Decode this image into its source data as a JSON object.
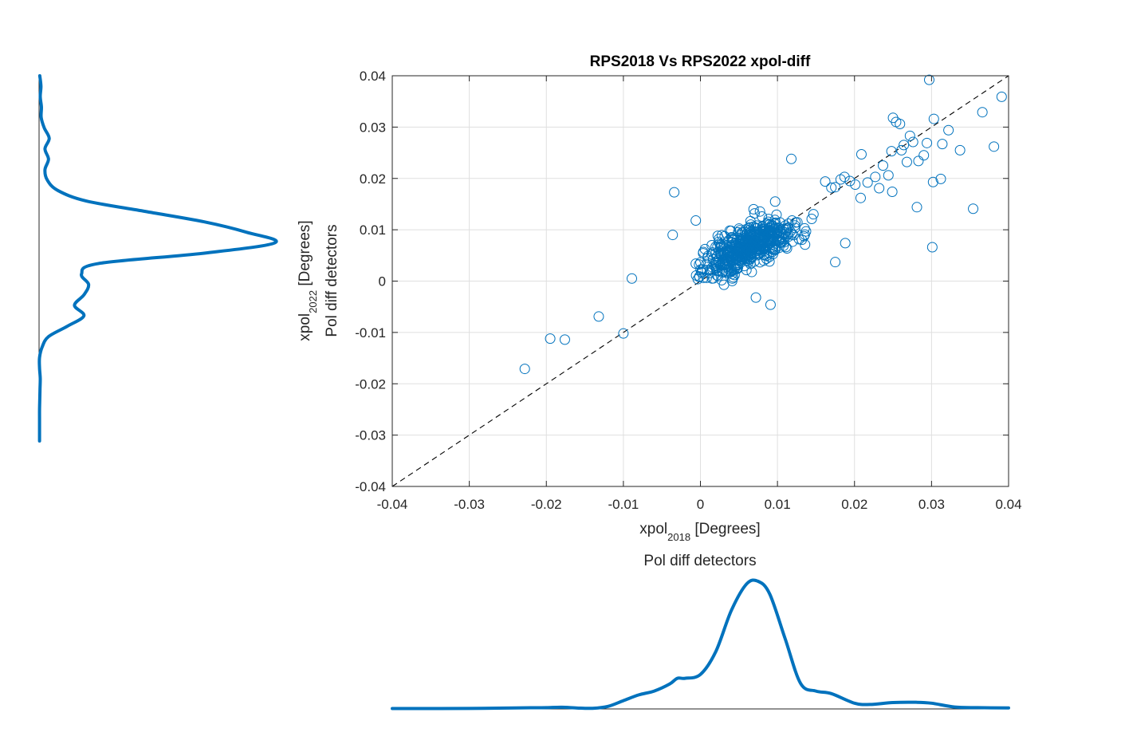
{
  "colors": {
    "series": "#0072bd",
    "axis": "#262626",
    "grid": "#dfdfdf",
    "reference_line": "#000000"
  },
  "chart_data": [
    {
      "type": "scatter",
      "title": "RPS2018 Vs RPS2022 xpol-diff",
      "xlabel": {
        "main": "xpol",
        "subscript": "2018",
        "suffix": " [Degrees]",
        "line2": "Pol diff detectors"
      },
      "ylabel": {
        "main": "xpol",
        "subscript": "2022",
        "suffix": " [Degrees]",
        "line2": "Pol diff detectors"
      },
      "xlim": [
        -0.04,
        0.04
      ],
      "ylim": [
        -0.04,
        0.04
      ],
      "xticks": [
        -0.04,
        -0.03,
        -0.02,
        -0.01,
        0,
        0.01,
        0.02,
        0.03,
        0.04
      ],
      "yticks": [
        -0.04,
        -0.03,
        -0.02,
        -0.01,
        0,
        0.01,
        0.02,
        0.03,
        0.04
      ],
      "xtick_labels": [
        "-0.04",
        "-0.03",
        "-0.02",
        "-0.01",
        "0",
        "0.01",
        "0.02",
        "0.03",
        "0.04"
      ],
      "ytick_labels": [
        "-0.04",
        "-0.03",
        "-0.02",
        "-0.01",
        "0",
        "0.01",
        "0.02",
        "0.03",
        "0.04"
      ],
      "grid": true,
      "marker": "open-circle",
      "reference_line": {
        "style": "dashed",
        "x": [
          -0.04,
          0.04
        ],
        "y": [
          -0.04,
          0.04
        ]
      },
      "points": {
        "highlighted": [
          [
            -0.0228,
            -0.0171
          ],
          [
            -0.0195,
            -0.0112
          ],
          [
            -0.0176,
            -0.0114
          ],
          [
            -0.0132,
            -0.0069
          ],
          [
            -0.01,
            -0.0102
          ],
          [
            -0.0089,
            0.0005
          ],
          [
            -0.0036,
            0.009
          ],
          [
            -0.0034,
            0.0173
          ],
          [
            -0.0006,
            0.0118
          ],
          [
            0.0069,
            0.014
          ],
          [
            0.0072,
            -0.0032
          ],
          [
            0.0091,
            -0.0046
          ],
          [
            0.0097,
            0.0155
          ],
          [
            0.0118,
            0.0238
          ],
          [
            0.0162,
            0.0194
          ],
          [
            0.0175,
            0.0037
          ],
          [
            0.0188,
            0.0074
          ],
          [
            0.0182,
            0.0198
          ],
          [
            0.0194,
            0.0195
          ],
          [
            0.0209,
            0.0247
          ],
          [
            0.0208,
            0.0162
          ],
          [
            0.0232,
            0.0181
          ],
          [
            0.025,
            0.0318
          ],
          [
            0.0254,
            0.031
          ],
          [
            0.0259,
            0.0306
          ],
          [
            0.0248,
            0.0253
          ],
          [
            0.0261,
            0.0255
          ],
          [
            0.0249,
            0.0174
          ],
          [
            0.0268,
            0.0232
          ],
          [
            0.0276,
            0.0271
          ],
          [
            0.0272,
            0.0283
          ],
          [
            0.0281,
            0.0144
          ],
          [
            0.0297,
            0.0392
          ],
          [
            0.0303,
            0.0316
          ],
          [
            0.0302,
            0.0193
          ],
          [
            0.0301,
            0.0066
          ],
          [
            0.0314,
            0.0267
          ],
          [
            0.0312,
            0.0199
          ],
          [
            0.0322,
            0.0294
          ],
          [
            0.0337,
            0.0255
          ],
          [
            0.0354,
            0.0141
          ],
          [
            0.0366,
            0.0329
          ],
          [
            0.0381,
            0.0262
          ],
          [
            0.0391,
            0.0359
          ],
          [
            0.0294,
            0.0269
          ],
          [
            0.029,
            0.0245
          ],
          [
            0.0283,
            0.0234
          ],
          [
            0.0264,
            0.0265
          ],
          [
            0.0237,
            0.0225
          ],
          [
            0.0244,
            0.0206
          ],
          [
            0.0227,
            0.0203
          ],
          [
            0.0217,
            0.0192
          ],
          [
            0.0201,
            0.0188
          ],
          [
            0.0187,
            0.0203
          ],
          [
            0.0175,
            0.0183
          ],
          [
            0.017,
            0.0182
          ]
        ],
        "cluster": {
          "center": [
            0.006,
            0.0065
          ],
          "spread_along_diagonal": 0.0055,
          "spread_across": 0.0022,
          "count": 520
        }
      }
    },
    {
      "type": "line",
      "title": "",
      "name": "density of xpol_2022",
      "orientation": "vertical",
      "y": [
        0.04,
        0.038,
        0.036,
        0.034,
        0.032,
        0.03,
        0.028,
        0.026,
        0.024,
        0.022,
        0.02,
        0.018,
        0.016,
        0.014,
        0.012,
        0.01,
        0.008,
        0.006,
        0.004,
        0.002,
        0.0,
        -0.002,
        -0.004,
        -0.006,
        -0.008,
        -0.01,
        -0.012,
        -0.014,
        -0.016,
        -0.018,
        -0.02,
        -0.022,
        -0.024,
        -0.026,
        -0.028,
        -0.03
      ],
      "values": [
        0.3,
        0.8,
        0.5,
        1.0,
        0.9,
        2.2,
        4.3,
        2.5,
        4.0,
        2.5,
        3.5,
        8.0,
        20.0,
        45.0,
        70.0,
        88.0,
        100.0,
        70.0,
        25.0,
        18.0,
        21.0,
        19.0,
        15.0,
        19.0,
        12.0,
        4.0,
        1.3,
        0.2,
        0.2,
        0.5,
        0.4,
        0.3,
        0.2,
        0.2,
        0.2,
        0.2
      ]
    },
    {
      "type": "line",
      "title": "",
      "name": "density of xpol_2018",
      "x": [
        -0.04,
        -0.035,
        -0.03,
        -0.025,
        -0.022,
        -0.02,
        -0.018,
        -0.016,
        -0.014,
        -0.012,
        -0.01,
        -0.008,
        -0.006,
        -0.004,
        -0.003,
        -0.002,
        0.0,
        0.002,
        0.004,
        0.006,
        0.0075,
        0.009,
        0.011,
        0.013,
        0.015,
        0.017,
        0.02,
        0.022,
        0.025,
        0.028,
        0.03,
        0.033,
        0.036,
        0.04
      ],
      "values": [
        0.3,
        0.3,
        0.4,
        0.7,
        0.9,
        1.0,
        1.3,
        0.7,
        0.5,
        2.0,
        6.5,
        11.0,
        14.0,
        19.5,
        24.0,
        24.0,
        27.0,
        45.0,
        77.0,
        98.0,
        100.0,
        90.0,
        55.0,
        20.0,
        14.0,
        12.0,
        4.5,
        3.5,
        5.0,
        5.2,
        4.5,
        1.5,
        1.0,
        0.8
      ]
    }
  ]
}
